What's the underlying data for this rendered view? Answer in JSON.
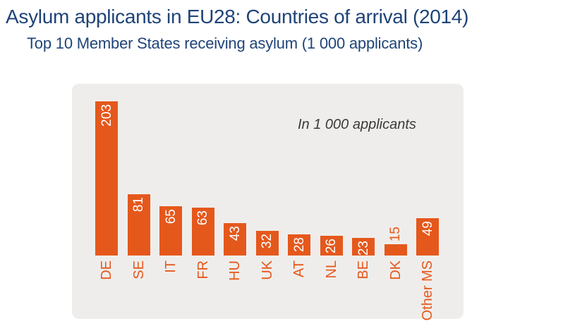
{
  "header": {
    "title": "Asylum applicants in EU28: Countries of arrival (2014)",
    "subtitle": "Top 10 Member States receiving asylum (1 000 applicants)"
  },
  "colors": {
    "title_blue": "#1F4478",
    "bar_orange": "#E5581C",
    "panel_bg": "#EFEDEB",
    "annotation_gray": "#3B3B3B",
    "value_label_white": "#FFFFFF"
  },
  "chart_data": {
    "type": "bar",
    "title": "Asylum applicants in EU28: Countries of arrival (2014)",
    "subtitle": "Top 10 Member States receiving asylum (1 000 applicants)",
    "annotation": "In 1 000 applicants",
    "categories": [
      "DE",
      "SE",
      "IT",
      "FR",
      "HU",
      "UK",
      "AT",
      "NL",
      "BE",
      "DK",
      "Other MS"
    ],
    "values": [
      203,
      81,
      65,
      63,
      43,
      32,
      28,
      26,
      23,
      15,
      49
    ],
    "xlabel": "",
    "ylabel": "",
    "ylim": [
      0,
      210
    ],
    "grid": false,
    "legend": false,
    "value_label_position": "inside-end (outside-end when bar too short)",
    "label_rotation": "90deg counterclockwise, reading bottom-to-top"
  }
}
